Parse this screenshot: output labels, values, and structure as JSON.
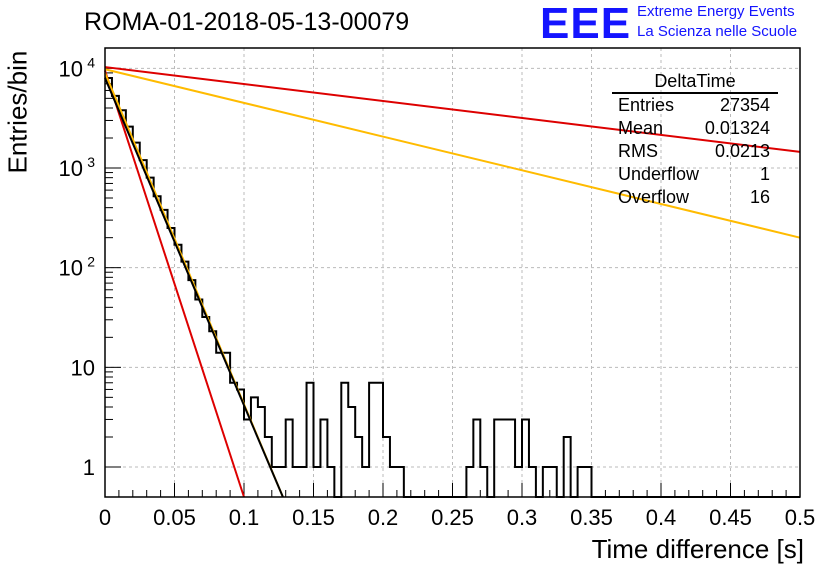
{
  "title": "ROMA-01-2018-05-13-00079",
  "brand": {
    "logo": "EEE",
    "line1": "Extreme Energy Events",
    "line2": "La Scienza nelle Scuole"
  },
  "stats": {
    "name": "DeltaTime",
    "rows": [
      {
        "label": "Entries",
        "value": "27354"
      },
      {
        "label": "Mean",
        "value": "0.01324"
      },
      {
        "label": "RMS",
        "value": "0.0213"
      },
      {
        "label": "Underflow",
        "value": "1"
      },
      {
        "label": "Overflow",
        "value": "16"
      }
    ]
  },
  "colors": {
    "histogram": "#000000",
    "red_fit": "#dd0000",
    "yellow_fit": "#ffbb00",
    "black_fit": "#000000",
    "grid": "#bbbbbb"
  },
  "chart_data": {
    "type": "line",
    "xlabel": "Time difference [s]",
    "ylabel": "Entries/bin",
    "xlim": [
      0,
      0.5
    ],
    "ylim": [
      0.5,
      16000
    ],
    "yscale": "log",
    "grid": true,
    "x_ticks": [
      "0",
      "0.05",
      "0.1",
      "0.15",
      "0.2",
      "0.25",
      "0.3",
      "0.35",
      "0.4",
      "0.45",
      "0.5"
    ],
    "y_ticks": [
      {
        "value": 1,
        "label": "1"
      },
      {
        "value": 10,
        "label": "10"
      },
      {
        "value": 100,
        "label": "10",
        "sup": "2"
      },
      {
        "value": 1000,
        "label": "10",
        "sup": "3"
      },
      {
        "value": 10000,
        "label": "10",
        "sup": "4"
      }
    ],
    "histogram": {
      "bin_width": 0.005,
      "counts": [
        8000,
        5300,
        3800,
        2600,
        1800,
        1200,
        800,
        520,
        380,
        250,
        170,
        115,
        75,
        48,
        32,
        23,
        14,
        14,
        7,
        6,
        3,
        5,
        4,
        2,
        1,
        1,
        3,
        1,
        1,
        7,
        1,
        3,
        1,
        0.5,
        7,
        4,
        2,
        1,
        7,
        7,
        2,
        1,
        1,
        0.5,
        0.5,
        0.5,
        0.5,
        0.5,
        0.5,
        0.5,
        0.5,
        0.5,
        1,
        3,
        1,
        0.5,
        3,
        3,
        3,
        1,
        3,
        1,
        0.5,
        1,
        1,
        0.5,
        2,
        0.5,
        1,
        1,
        0.5,
        0.5,
        0.5,
        0.5,
        0.5,
        0.5,
        0.5,
        0.5,
        0.5,
        0.5,
        0.5,
        0.5,
        0.5,
        0.5,
        0.5,
        0.5,
        0.5,
        0.5,
        0.5,
        0.5,
        0.5,
        0.5,
        0.5,
        0.5,
        0.5,
        0.5,
        0.5,
        0.5,
        0.5,
        0.5
      ]
    },
    "fits": [
      {
        "color": "red",
        "x": [
          0,
          0.5
        ],
        "y": [
          10300,
          1450
        ]
      },
      {
        "color": "yellow",
        "x": [
          0,
          0.5
        ],
        "y": [
          9800,
          200
        ]
      },
      {
        "color": "red",
        "x": [
          0,
          0.1
        ],
        "y": [
          9500,
          0.5
        ]
      },
      {
        "color": "yellow",
        "x": [
          0,
          0.128
        ],
        "y": [
          9000,
          0.5
        ]
      },
      {
        "color": "black",
        "x": [
          0,
          0.128
        ],
        "y": [
          8000,
          0.5
        ]
      }
    ]
  }
}
